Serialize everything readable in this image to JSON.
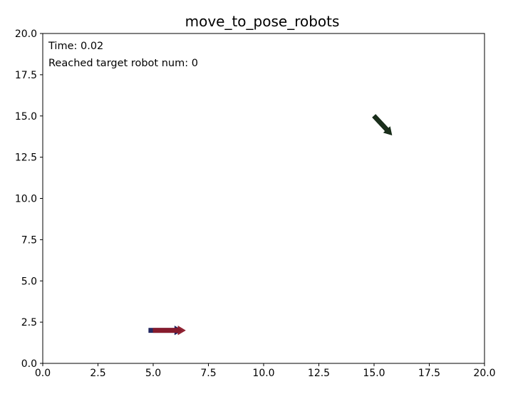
{
  "chart_data": {
    "type": "scatter",
    "title": "move_to_pose_robots",
    "xlabel": "",
    "ylabel": "",
    "xlim": [
      0,
      20
    ],
    "ylim": [
      0,
      20
    ],
    "xticks": [
      "0.0",
      "2.5",
      "5.0",
      "7.5",
      "10.0",
      "12.5",
      "15.0",
      "17.5",
      "20.0"
    ],
    "yticks": [
      "0.0",
      "2.5",
      "5.0",
      "7.5",
      "10.0",
      "12.5",
      "15.0",
      "17.5",
      "20.0"
    ],
    "grid": false,
    "annotations": {
      "time": "Time: 0.02",
      "reached": "Reached target robot num: 0"
    },
    "arrows": [
      {
        "x": 15.0,
        "y": 15.0,
        "dx": 0.8,
        "dy": -1.15,
        "color": "#0f2410"
      },
      {
        "x": 4.8,
        "y": 2.0,
        "dx": 1.5,
        "dy": 0.0,
        "color": "#1a1f5a"
      },
      {
        "x": 5.0,
        "y": 2.0,
        "dx": 1.45,
        "dy": 0.0,
        "color": "#8b1a2a"
      }
    ]
  }
}
